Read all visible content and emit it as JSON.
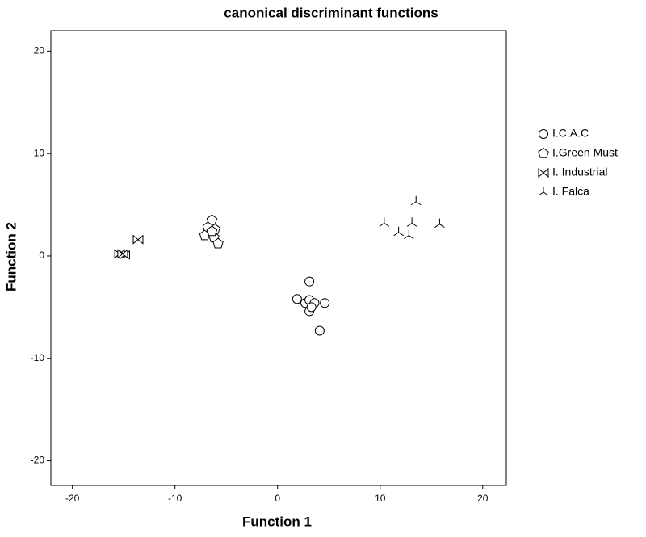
{
  "chart_data": {
    "type": "scatter",
    "title": "canonical discriminant functions",
    "xlabel": "Function 1",
    "ylabel": "Function 2",
    "xlim": [
      -22.1,
      22.3
    ],
    "ylim": [
      -22.4,
      22.0
    ],
    "xticks": [
      -20,
      -10,
      0,
      10,
      20
    ],
    "yticks": [
      -20,
      -10,
      0,
      10,
      20
    ],
    "series": [
      {
        "name": "I.C.A.C",
        "marker": "circle",
        "color": "#000000",
        "x": [
          3.1,
          1.9,
          2.7,
          3.1,
          3.6,
          4.6,
          3.1,
          3.3,
          4.1
        ],
        "values": [
          -2.5,
          -4.2,
          -4.6,
          -4.3,
          -4.6,
          -4.6,
          -5.4,
          -5.0,
          -7.3
        ]
      },
      {
        "name": "I.Green Must",
        "marker": "pentagon",
        "color": "#000000",
        "x": [
          -6.4,
          -6.8,
          -6.1,
          -7.1,
          -6.2,
          -5.8,
          -6.4
        ],
        "values": [
          3.5,
          2.8,
          2.6,
          2.0,
          1.8,
          1.2,
          2.4
        ]
      },
      {
        "name": "I. Industrial",
        "marker": "bowtie",
        "color": "#000000",
        "x": [
          -15.4,
          -14.9,
          -15.1,
          -13.6
        ],
        "values": [
          0.2,
          0.1,
          0.2,
          1.6
        ]
      },
      {
        "name": "I. Falca",
        "marker": "tri",
        "color": "#000000",
        "x": [
          13.5,
          10.4,
          13.1,
          15.8,
          11.8,
          12.8
        ],
        "values": [
          5.3,
          3.2,
          3.2,
          3.1,
          2.3,
          2.0
        ]
      }
    ]
  }
}
